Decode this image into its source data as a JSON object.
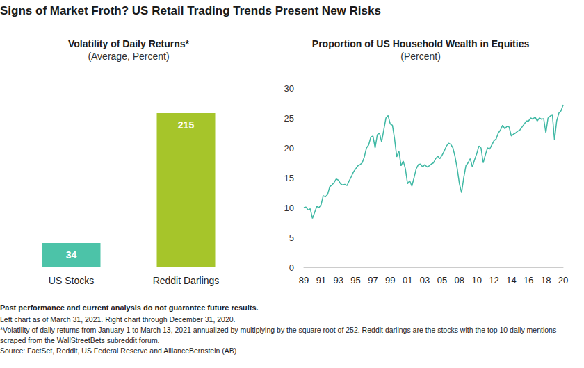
{
  "title": "Signs of Market Froth? US Retail Trading Trends Present New Risks",
  "notes": [
    "Past performance and current analysis do not guarantee future results.",
    "Left chart as of March 31, 2021. Right chart through December 31, 2020.",
    "*Volatility of daily returns from January 1 to March 13, 2021 annualized by multiplying by the square root of 252. Reddit darlings are the stocks with the top 10 daily mentions scraped from the WallStreetBets subreddit forum.",
    "Source: FactSet, Reddit, US Federal Reserve and AllianceBernstein (AB)"
  ],
  "chart_data": [
    {
      "type": "bar",
      "title": "Volatility of Daily Returns*",
      "subtitle": "(Average, Percent)",
      "categories": [
        "US Stocks",
        "Reddit Darlings"
      ],
      "values": [
        34,
        215
      ],
      "colors": [
        "#4cc3a8",
        "#a6c52a"
      ],
      "ylim": [
        0,
        215
      ],
      "data_labels": true,
      "tick_labels": "x",
      "grid": false
    },
    {
      "type": "line",
      "title": "Proportion of US Household Wealth in Equities",
      "subtitle": "(Percent)",
      "categories": [
        "89",
        null,
        null,
        null,
        null,
        null,
        null,
        null,
        "91",
        null,
        null,
        null,
        null,
        null,
        null,
        null,
        "93",
        null,
        null,
        null,
        null,
        null,
        null,
        null,
        "95",
        null,
        null,
        null,
        null,
        null,
        null,
        null,
        "97",
        null,
        null,
        null,
        null,
        null,
        null,
        null,
        "99",
        null,
        null,
        null,
        null,
        null,
        null,
        null,
        "01",
        null,
        null,
        null,
        null,
        null,
        null,
        null,
        "03",
        null,
        null,
        null,
        null,
        null,
        null,
        null,
        "05",
        null,
        null,
        null,
        null,
        null,
        null,
        null,
        "08",
        null,
        null,
        null,
        null,
        null,
        null,
        null,
        "10",
        null,
        null,
        null,
        null,
        null,
        null,
        null,
        "12",
        null,
        null,
        null,
        null,
        null,
        null,
        null,
        "14",
        null,
        null,
        null,
        null,
        null,
        null,
        null,
        "16",
        null,
        null,
        null,
        null,
        null,
        null,
        null,
        "18",
        null,
        null,
        null,
        null,
        null,
        null,
        null,
        "20"
      ],
      "values": [
        10.0,
        10.1,
        9.6,
        9.8,
        8.2,
        9.2,
        10.2,
        10.0,
        10.5,
        12.0,
        11.8,
        12.2,
        13.5,
        13.8,
        14.2,
        14.8,
        14.6,
        14.0,
        13.8,
        13.9,
        13.7,
        14.5,
        15.2,
        16.0,
        16.5,
        17.0,
        17.2,
        17.5,
        18.5,
        20.0,
        20.5,
        21.8,
        22.0,
        20.0,
        22.2,
        22.5,
        21.0,
        23.0,
        25.0,
        25.4,
        24.0,
        23.8,
        21.5,
        18.5,
        19.5,
        17.0,
        17.8,
        16.5,
        14.0,
        14.5,
        13.6,
        15.0,
        16.5,
        17.2,
        17.3,
        16.8,
        17.2,
        16.8,
        17.0,
        17.3,
        17.5,
        18.2,
        18.6,
        18.2,
        18.8,
        19.5,
        20.3,
        20.8,
        20.6,
        20.0,
        18.5,
        16.5,
        14.0,
        12.5,
        15.0,
        17.0,
        17.5,
        18.2,
        16.8,
        18.0,
        19.0,
        20.3,
        20.0,
        17.5,
        18.8,
        20.0,
        19.8,
        20.5,
        21.2,
        21.5,
        22.5,
        23.0,
        23.8,
        23.2,
        23.6,
        23.5,
        22.0,
        22.3,
        22.5,
        22.8,
        23.0,
        23.5,
        24.0,
        24.5,
        24.5,
        25.0,
        24.8,
        25.2,
        24.5,
        25.0,
        24.8,
        24.9,
        22.5,
        25.0,
        25.3,
        25.6,
        21.3,
        24.5,
        25.8,
        26.2,
        27.2
      ],
      "color": "#3fb8a4",
      "ylim": [
        0,
        30
      ],
      "yticks": [
        0,
        5,
        10,
        15,
        20,
        25,
        30
      ],
      "grid": false
    }
  ]
}
